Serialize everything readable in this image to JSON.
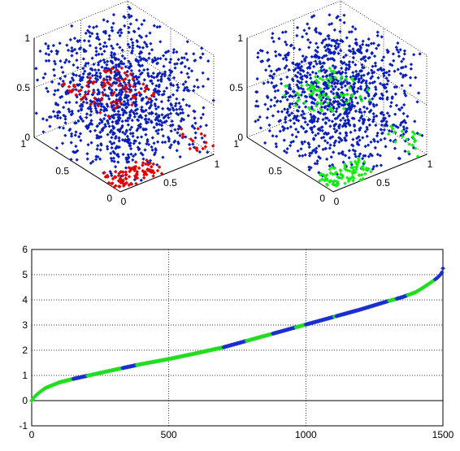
{
  "colors": {
    "background_points": "#0a1fb8",
    "highlight_left": "#e00000",
    "highlight_right": "#11ee11",
    "line_blue": "#1a2fd0",
    "line_green": "#22dd22",
    "grid": "#000000"
  },
  "chart_data": [
    {
      "type": "scatter",
      "subtype": "3d-scatter",
      "title": "",
      "xlabel": "",
      "ylabel": "",
      "zlabel": "",
      "xlim": [
        0,
        1
      ],
      "ylim": [
        0,
        1
      ],
      "zlim": [
        0,
        1
      ],
      "z_ticks": [
        "0",
        "0.5",
        "1"
      ],
      "y_ticks": [
        "0",
        "0.5",
        "1"
      ],
      "x_ticks": [
        "0",
        "0.5",
        "1"
      ],
      "grid": true,
      "series": [
        {
          "color": "#0a1fb8",
          "marker": "dot",
          "approx_count": 1500,
          "distribution": "uniform random points in the unit cube"
        },
        {
          "color": "#e00000",
          "marker": "dot",
          "approx_count": 200,
          "distribution": "points highlighted in a band near the origin corner and a sheet near z 0.5"
        }
      ]
    },
    {
      "type": "scatter",
      "subtype": "3d-scatter",
      "title": "",
      "xlabel": "",
      "ylabel": "",
      "zlabel": "",
      "xlim": [
        0,
        1
      ],
      "ylim": [
        0,
        1
      ],
      "zlim": [
        0,
        1
      ],
      "z_ticks": [
        "0",
        "0.5",
        "1"
      ],
      "y_ticks": [
        "0",
        "0.5",
        "1"
      ],
      "x_ticks": [
        "0",
        "0.5",
        "1"
      ],
      "grid": true,
      "series": [
        {
          "color": "#0a1fb8",
          "marker": "dot",
          "approx_count": 1500,
          "distribution": "uniform random points in the unit cube"
        },
        {
          "color": "#11ee11",
          "marker": "dot",
          "approx_count": 200,
          "distribution": "points highlighted in a band near the origin corner and a sheet near z 0.5"
        }
      ]
    },
    {
      "type": "line",
      "title": "",
      "xlabel": "",
      "ylabel": "",
      "xlim": [
        0,
        1500
      ],
      "ylim": [
        -1,
        6
      ],
      "x_ticks": [
        "0",
        "500",
        "1000",
        "1500"
      ],
      "y_ticks": [
        "-1",
        "0",
        "1",
        "2",
        "3",
        "4",
        "5",
        "6"
      ],
      "grid": true,
      "series": [
        {
          "color": "#22dd22",
          "marker": "dot",
          "x": [
            0,
            10,
            25,
            50,
            100,
            150,
            200,
            300,
            400,
            500,
            600,
            700,
            800,
            900,
            1000,
            1100,
            1200,
            1300,
            1350,
            1400,
            1430,
            1460,
            1480,
            1495,
            1500
          ],
          "y": [
            0.0,
            0.15,
            0.3,
            0.5,
            0.72,
            0.86,
            0.98,
            1.22,
            1.45,
            1.65,
            1.88,
            2.12,
            2.42,
            2.72,
            3.02,
            3.32,
            3.62,
            3.95,
            4.1,
            4.3,
            4.5,
            4.72,
            4.88,
            5.05,
            5.25
          ]
        },
        {
          "color": "#1a2fd0",
          "marker": "dot",
          "segments": [
            [
              150,
              200
            ],
            [
              330,
              380
            ],
            [
              700,
              780
            ],
            [
              880,
              960
            ],
            [
              1000,
              1100
            ],
            [
              1110,
              1300
            ],
            [
              1330,
              1370
            ],
            [
              1470,
              1500
            ]
          ]
        }
      ]
    }
  ]
}
